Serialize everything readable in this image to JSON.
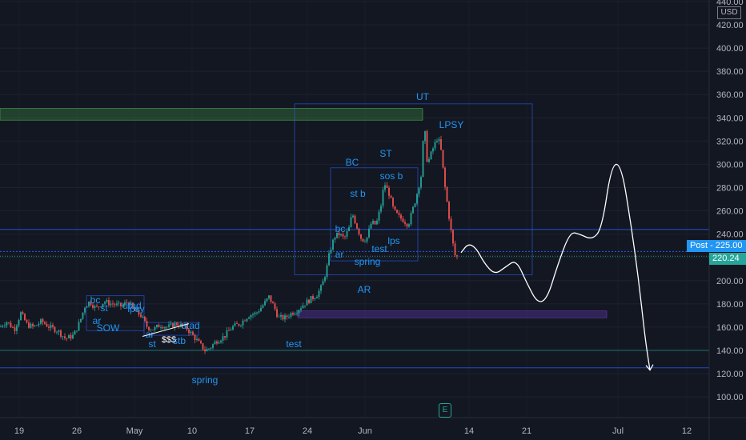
{
  "currency": "USD",
  "price_tag": "Post - 225.00",
  "last_price": "220.24",
  "earnings_marker": "E",
  "chart_data": {
    "type": "candlestick",
    "y_axis": {
      "ticks": [
        100,
        120,
        140,
        160,
        180,
        200,
        220,
        240,
        260,
        280,
        300,
        320,
        340,
        360,
        380,
        400,
        420,
        440
      ],
      "tick_labels": [
        "100.00",
        "120.00",
        "140.00",
        "160.00",
        "180.00",
        "200.00",
        "220.00",
        "240.00",
        "260.00",
        "280.00",
        "300.00",
        "320.00",
        "340.00",
        "360.00",
        "380.00",
        "400.00",
        "420.00",
        "440.00"
      ],
      "range": [
        90,
        444
      ],
      "label": "USD"
    },
    "x_axis": {
      "tick_labels": [
        "19",
        "26",
        "May",
        "10",
        "17",
        "24",
        "Jun",
        "14",
        "21",
        "Jul",
        "12"
      ]
    },
    "price_path": [
      [
        0,
        160
      ],
      [
        8,
        165
      ],
      [
        18,
        158
      ],
      [
        26,
        172
      ],
      [
        34,
        162
      ],
      [
        42,
        160
      ],
      [
        52,
        165
      ],
      [
        62,
        160
      ],
      [
        72,
        157
      ],
      [
        82,
        150
      ],
      [
        92,
        153
      ],
      [
        100,
        165
      ],
      [
        106,
        178
      ],
      [
        112,
        182
      ],
      [
        120,
        176
      ],
      [
        130,
        182
      ],
      [
        140,
        180
      ],
      [
        152,
        178
      ],
      [
        160,
        182
      ],
      [
        168,
        174
      ],
      [
        176,
        170
      ],
      [
        184,
        160
      ],
      [
        192,
        158
      ],
      [
        200,
        162
      ],
      [
        210,
        160
      ],
      [
        220,
        163
      ],
      [
        232,
        160
      ],
      [
        242,
        152
      ],
      [
        250,
        145
      ],
      [
        256,
        140
      ],
      [
        262,
        142
      ],
      [
        270,
        148
      ],
      [
        280,
        152
      ],
      [
        290,
        160
      ],
      [
        300,
        163
      ],
      [
        310,
        170
      ],
      [
        320,
        172
      ],
      [
        330,
        180
      ],
      [
        336,
        186
      ],
      [
        342,
        178
      ],
      [
        348,
        168
      ],
      [
        356,
        168
      ],
      [
        364,
        172
      ],
      [
        372,
        175
      ],
      [
        380,
        180
      ],
      [
        388,
        184
      ],
      [
        396,
        188
      ],
      [
        402,
        195
      ],
      [
        408,
        210
      ],
      [
        412,
        225
      ],
      [
        418,
        238
      ],
      [
        424,
        240
      ],
      [
        430,
        236
      ],
      [
        436,
        245
      ],
      [
        440,
        258
      ],
      [
        446,
        246
      ],
      [
        452,
        235
      ],
      [
        458,
        236
      ],
      [
        464,
        250
      ],
      [
        470,
        248
      ],
      [
        476,
        265
      ],
      [
        480,
        284
      ],
      [
        486,
        275
      ],
      [
        492,
        260
      ],
      [
        498,
        255
      ],
      [
        504,
        252
      ],
      [
        510,
        248
      ],
      [
        516,
        262
      ],
      [
        520,
        272
      ],
      [
        526,
        290
      ],
      [
        530,
        335
      ],
      [
        534,
        300
      ],
      [
        540,
        312
      ],
      [
        546,
        322
      ],
      [
        550,
        318
      ],
      [
        556,
        280
      ],
      [
        560,
        260
      ],
      [
        564,
        240
      ],
      [
        568,
        222
      ],
      [
        572,
        220
      ]
    ],
    "projection": [
      [
        576,
        224
      ],
      [
        585,
        232
      ],
      [
        595,
        228
      ],
      [
        605,
        215
      ],
      [
        618,
        205
      ],
      [
        632,
        212
      ],
      [
        645,
        218
      ],
      [
        658,
        198
      ],
      [
        672,
        180
      ],
      [
        684,
        185
      ],
      [
        696,
        212
      ],
      [
        712,
        242
      ],
      [
        724,
        240
      ],
      [
        740,
        235
      ],
      [
        752,
        245
      ],
      [
        764,
        300
      ],
      [
        776,
        300
      ],
      [
        788,
        250
      ],
      [
        798,
        200
      ],
      [
        806,
        150
      ],
      [
        812,
        123
      ]
    ],
    "zones": [
      {
        "type": "supply",
        "y_top": 348,
        "y_bottom": 338
      },
      {
        "type": "support",
        "y_top": 174,
        "y_bottom": 168
      }
    ],
    "horizontal_levels": [
      244,
      225,
      221,
      140,
      125
    ],
    "boxes": [
      {
        "name": "distribution-range",
        "y_top": 352,
        "y_bottom": 205
      },
      {
        "name": "inner-range",
        "y_top": 297,
        "y_bottom": 217
      },
      {
        "name": "accumulation-range-1",
        "y_top": 187,
        "y_bottom": 157
      },
      {
        "name": "accumulation-range-2",
        "y_top": 164,
        "y_bottom": 153
      }
    ],
    "annotations": [
      "UT",
      "LPSY",
      "BC",
      "ST",
      "sos b",
      "st b",
      "bc",
      "lps",
      "ar",
      "test",
      "spring",
      "AR",
      "bc",
      "st",
      "utad",
      "lpsy",
      "ar",
      "SOW",
      "ar",
      "st",
      "$$$",
      "stb",
      "utad",
      "test",
      "spring"
    ]
  }
}
